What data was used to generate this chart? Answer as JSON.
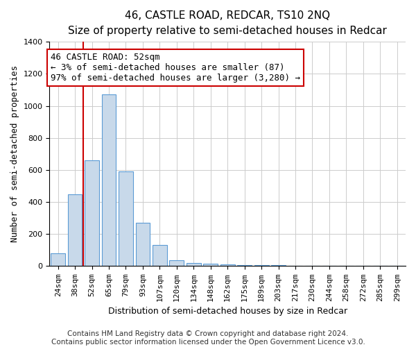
{
  "title": "46, CASTLE ROAD, REDCAR, TS10 2NQ",
  "subtitle": "Size of property relative to semi-detached houses in Redcar",
  "xlabel": "Distribution of semi-detached houses by size in Redcar",
  "ylabel": "Number of semi-detached properties",
  "footer_line1": "Contains HM Land Registry data © Crown copyright and database right 2024.",
  "footer_line2": "Contains public sector information licensed under the Open Government Licence v3.0.",
  "annotation_line1": "46 CASTLE ROAD: 52sqm",
  "annotation_line2": "← 3% of semi-detached houses are smaller (87)",
  "annotation_line3": "97% of semi-detached houses are larger (3,280) →",
  "bar_labels": [
    "24sqm",
    "38sqm",
    "52sqm",
    "65sqm",
    "79sqm",
    "93sqm",
    "107sqm",
    "120sqm",
    "134sqm",
    "148sqm",
    "162sqm",
    "175sqm",
    "189sqm",
    "203sqm",
    "217sqm",
    "230sqm",
    "244sqm",
    "258sqm",
    "272sqm",
    "285sqm",
    "299sqm"
  ],
  "bar_values": [
    80,
    450,
    660,
    1070,
    590,
    270,
    130,
    35,
    20,
    15,
    10,
    8,
    5,
    5,
    3,
    2,
    2,
    1,
    1,
    1,
    1
  ],
  "highlight_index": 2,
  "bar_color": "#c8d9ea",
  "bar_edge_color": "#5b9bd5",
  "highlight_line_color": "#cc0000",
  "ylim": [
    0,
    1400
  ],
  "yticks": [
    0,
    200,
    400,
    600,
    800,
    1000,
    1200,
    1400
  ],
  "grid_color": "#cccccc",
  "background_color": "#ffffff",
  "annotation_box_color": "#ffffff",
  "annotation_box_edge": "#cc0000",
  "title_fontsize": 11,
  "subtitle_fontsize": 10,
  "axis_label_fontsize": 9,
  "tick_fontsize": 8,
  "annotation_fontsize": 9,
  "footer_fontsize": 7.5
}
